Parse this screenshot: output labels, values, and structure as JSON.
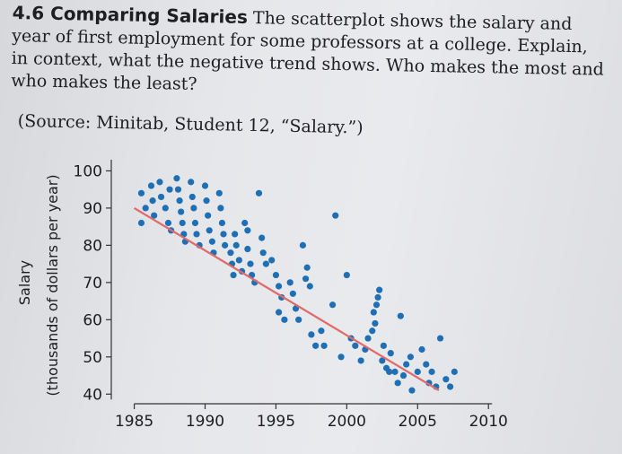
{
  "problem": {
    "number_title": "4.6 Comparing Salaries",
    "text_line1": "The scatterplot shows the salary and",
    "text_line2": "year of first employment for some professors at a college. Explain,",
    "text_line3": "in context, what the negative trend shows. Who makes the most and",
    "text_line4": "who makes the least?",
    "source": "(Source: Minitab, Student 12, “Salary.”)"
  },
  "chart_data": {
    "type": "scatter",
    "title": "",
    "xlabel": "",
    "ylabel_line1": "Salary",
    "ylabel_line2": "(thousands of dollars per year)",
    "xlim": [
      1983,
      2011
    ],
    "ylim": [
      35,
      103
    ],
    "x_ticks": [
      1985,
      1990,
      1995,
      2000,
      2005,
      2010
    ],
    "y_ticks": [
      40,
      50,
      60,
      70,
      80,
      90,
      100
    ],
    "trend_line": {
      "x": [
        1985,
        2006.5
      ],
      "y": [
        90,
        41
      ]
    },
    "colors": {
      "points": "#1f6fb4",
      "trend": "#e06a68"
    },
    "points": [
      [
        1985.5,
        94
      ],
      [
        1985.8,
        90
      ],
      [
        1985.5,
        86
      ],
      [
        1986.2,
        96
      ],
      [
        1986.3,
        92
      ],
      [
        1986.4,
        88
      ],
      [
        1986.8,
        97
      ],
      [
        1986.9,
        93
      ],
      [
        1987.2,
        90
      ],
      [
        1987.4,
        86
      ],
      [
        1987.6,
        84
      ],
      [
        1987.5,
        95
      ],
      [
        1988.0,
        98
      ],
      [
        1988.1,
        95
      ],
      [
        1988.2,
        92
      ],
      [
        1988.3,
        89
      ],
      [
        1988.4,
        86
      ],
      [
        1988.5,
        83
      ],
      [
        1988.6,
        81
      ],
      [
        1989.0,
        97
      ],
      [
        1989.1,
        93
      ],
      [
        1989.2,
        90
      ],
      [
        1989.3,
        86
      ],
      [
        1989.4,
        83
      ],
      [
        1989.6,
        80
      ],
      [
        1990.0,
        96
      ],
      [
        1990.1,
        92
      ],
      [
        1990.2,
        88
      ],
      [
        1990.3,
        84
      ],
      [
        1990.5,
        81
      ],
      [
        1990.6,
        78
      ],
      [
        1991.0,
        94
      ],
      [
        1991.1,
        90
      ],
      [
        1991.2,
        86
      ],
      [
        1991.3,
        83
      ],
      [
        1991.4,
        80
      ],
      [
        1991.8,
        78
      ],
      [
        1991.9,
        75
      ],
      [
        1992.0,
        72
      ],
      [
        1992.1,
        83
      ],
      [
        1992.2,
        80
      ],
      [
        1992.4,
        76
      ],
      [
        1992.6,
        73
      ],
      [
        1992.8,
        86
      ],
      [
        1993.0,
        84
      ],
      [
        1993.0,
        79
      ],
      [
        1993.2,
        75
      ],
      [
        1993.3,
        72
      ],
      [
        1993.5,
        70
      ],
      [
        1993.8,
        94
      ],
      [
        1994.0,
        82
      ],
      [
        1994.1,
        78
      ],
      [
        1994.3,
        75
      ],
      [
        1994.7,
        76
      ],
      [
        1995.0,
        72
      ],
      [
        1995.2,
        69
      ],
      [
        1995.4,
        66
      ],
      [
        1995.2,
        62
      ],
      [
        1995.6,
        60
      ],
      [
        1996.0,
        70
      ],
      [
        1996.2,
        67
      ],
      [
        1996.4,
        63
      ],
      [
        1996.6,
        60
      ],
      [
        1996.9,
        80
      ],
      [
        1997.1,
        71
      ],
      [
        1997.2,
        74
      ],
      [
        1997.4,
        69
      ],
      [
        1997.5,
        56
      ],
      [
        1997.8,
        53
      ],
      [
        1998.2,
        57
      ],
      [
        1998.4,
        53
      ],
      [
        1999.0,
        64
      ],
      [
        1999.2,
        88
      ],
      [
        1999.6,
        50
      ],
      [
        2000.0,
        72
      ],
      [
        2000.3,
        55
      ],
      [
        2000.6,
        53
      ],
      [
        2001.0,
        49
      ],
      [
        2001.3,
        52
      ],
      [
        2001.5,
        55
      ],
      [
        2001.8,
        57
      ],
      [
        2001.9,
        62
      ],
      [
        2002.0,
        59
      ],
      [
        2002.1,
        64
      ],
      [
        2002.2,
        66
      ],
      [
        2002.3,
        68
      ],
      [
        2002.5,
        49
      ],
      [
        2002.6,
        53
      ],
      [
        2002.8,
        47
      ],
      [
        2003.0,
        46
      ],
      [
        2003.1,
        51
      ],
      [
        2003.4,
        46
      ],
      [
        2003.6,
        43
      ],
      [
        2003.8,
        61
      ],
      [
        2004.0,
        45
      ],
      [
        2004.2,
        48
      ],
      [
        2004.5,
        50
      ],
      [
        2004.6,
        41
      ],
      [
        2005.0,
        46
      ],
      [
        2005.3,
        52
      ],
      [
        2005.6,
        48
      ],
      [
        2005.8,
        43
      ],
      [
        2006.0,
        46
      ],
      [
        2006.3,
        42
      ],
      [
        2006.6,
        55
      ],
      [
        2007.0,
        44
      ],
      [
        2007.3,
        42
      ],
      [
        2007.6,
        46
      ]
    ]
  }
}
